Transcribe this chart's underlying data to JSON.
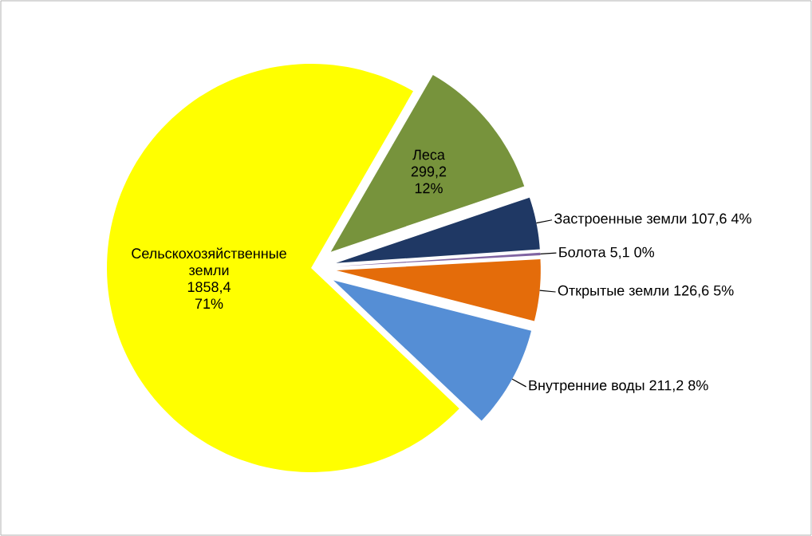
{
  "chart_data": {
    "type": "pie",
    "categories": [
      "Леса",
      "Застроенные земли",
      "Болота",
      "Открытые земли",
      "Внутренние воды",
      "Сельскохозяйственные земли"
    ],
    "values": [
      299.2,
      107.6,
      5.1,
      126.6,
      211.2,
      1858.4
    ],
    "colors": [
      "#77933c",
      "#1f3864",
      "#8064a2",
      "#e46c0a",
      "#558ed5",
      "#ffff00"
    ],
    "value_labels": [
      "299,2",
      "107,6",
      "5,1",
      "126,6",
      "211,2",
      "1858,4"
    ],
    "annotations": [
      "12%",
      "4%",
      "0%",
      "5%",
      "8%",
      "71%"
    ]
  }
}
